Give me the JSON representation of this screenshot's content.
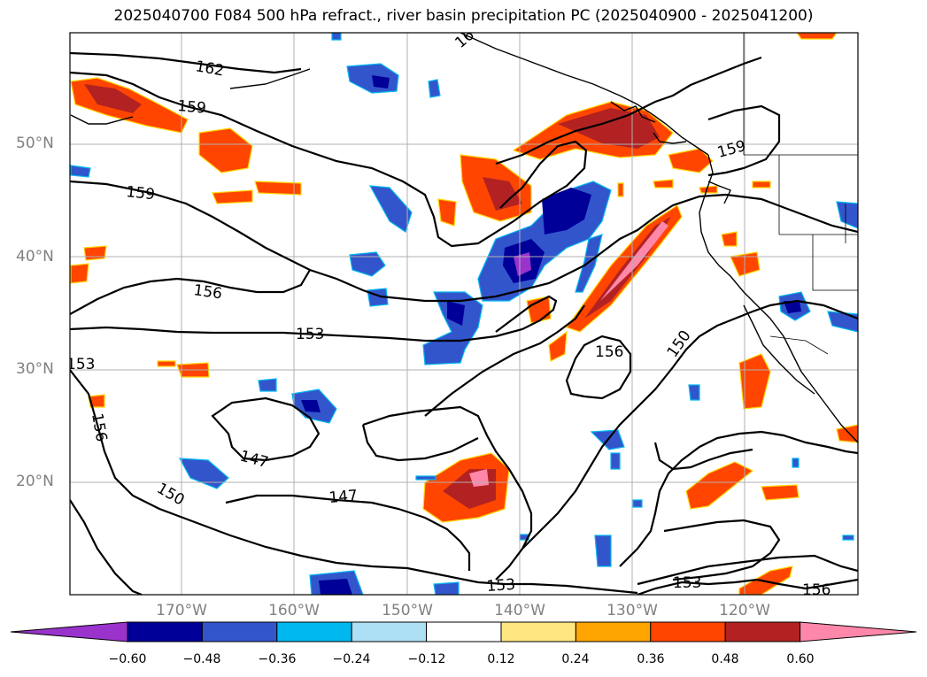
{
  "title": "2025040700 F084 500 hPa refract., river basin precipitation PC (2025040900 - 2025041200)",
  "map": {
    "lat_labels": [
      "50°N",
      "40°N",
      "30°N",
      "20°N"
    ],
    "lon_labels": [
      "170°W",
      "160°W",
      "150°W",
      "140°W",
      "130°W",
      "120°W"
    ],
    "contour_labels": [
      "162",
      "159",
      "159",
      "156",
      "153",
      "153",
      "156",
      "156",
      "150",
      "147",
      "147",
      "150",
      "153",
      "153",
      "156",
      "159",
      "16"
    ]
  },
  "colorbar": {
    "ticks": [
      "−0.60",
      "−0.48",
      "−0.36",
      "−0.24",
      "−0.12",
      "0.12",
      "0.24",
      "0.36",
      "0.48",
      "0.60"
    ],
    "colors": [
      "#9933cc",
      "#000099",
      "#3355cc",
      "#00b8f0",
      "#aee0f5",
      "#ffffff",
      "#ffe680",
      "#ffa500",
      "#ff4500",
      "#b22222",
      "#ff88aa"
    ]
  }
}
